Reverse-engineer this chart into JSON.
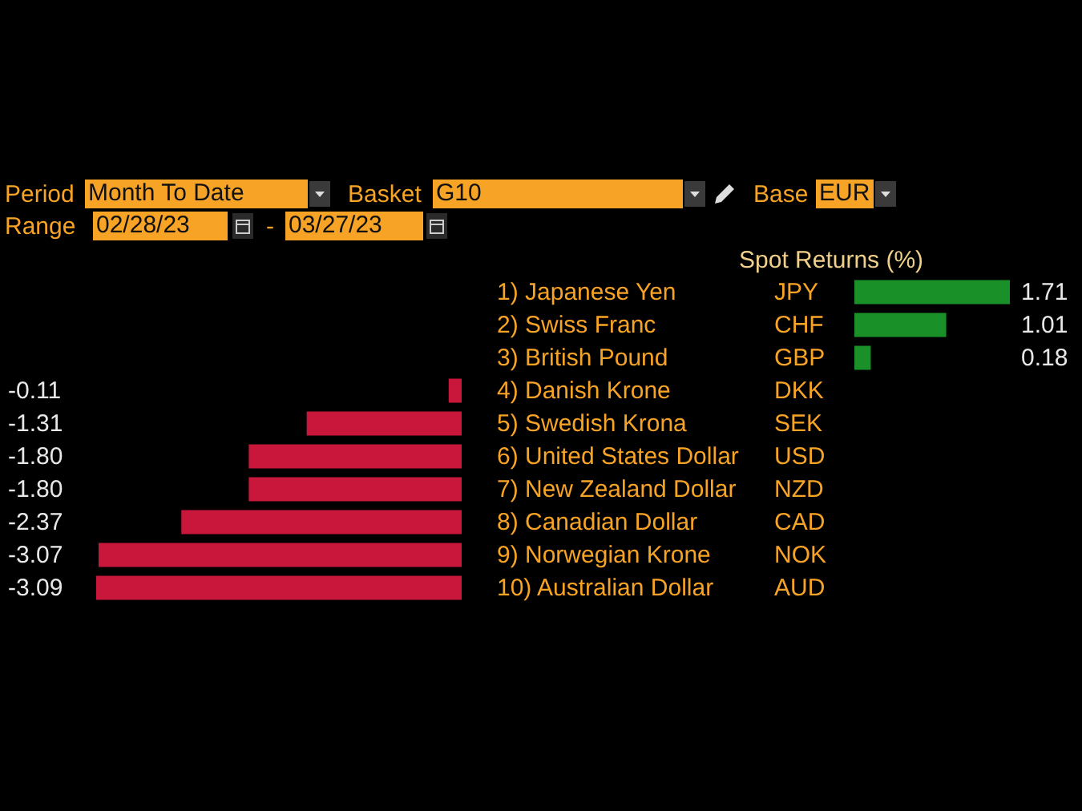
{
  "chart_data": [
    {
      "type": "bar",
      "orientation": "horizontal",
      "categories": [
        "1) Japanese Yen",
        "2) Swiss Franc",
        "3) British Pound",
        "4) Danish Krone",
        "5) Swedish Krona",
        "6) United States Dollar",
        "7) New Zealand Dollar",
        "8) Canadian Dollar",
        "9) Norwegian Krone",
        "10) Australian Dollar"
      ],
      "values": [
        null,
        null,
        null,
        -0.11,
        -1.31,
        -1.8,
        -1.8,
        -2.37,
        -3.07,
        -3.09
      ],
      "value_labels": [
        null,
        null,
        null,
        "-0.11",
        "-1.31",
        "-1.80",
        "-1.80",
        "-2.37",
        "-3.07",
        "-3.09"
      ],
      "color": "#c8173a",
      "annotations": [
        "Period",
        "Month To Date",
        "Basket",
        "G10",
        "Base",
        "EUR",
        "Range",
        "02/28/23",
        "-",
        "03/27/23"
      ]
    },
    {
      "type": "bar",
      "orientation": "horizontal",
      "title": "Spot Returns (%)",
      "categories": [
        "JPY",
        "CHF",
        "GBP",
        "DKK",
        "SEK",
        "USD",
        "NZD",
        "CAD",
        "NOK",
        "AUD"
      ],
      "values": [
        1.71,
        1.01,
        0.18,
        null,
        null,
        null,
        null,
        null,
        null,
        null
      ],
      "value_labels": [
        "1.71",
        "1.01",
        "0.18",
        null,
        null,
        null,
        null,
        null,
        null,
        null
      ],
      "color": "#1a9128"
    }
  ]
}
